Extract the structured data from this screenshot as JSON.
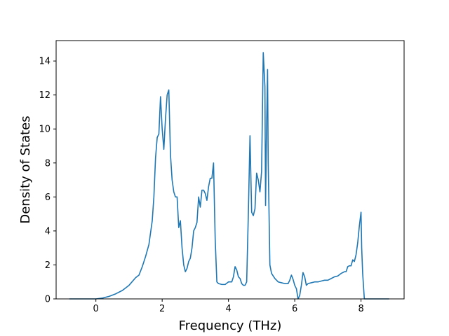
{
  "chart_data": {
    "type": "line",
    "title": "",
    "xlabel": "Frequency (THz)",
    "ylabel": "Density of States",
    "xlim": [
      -1.2,
      9.3
    ],
    "ylim": [
      0,
      15.2
    ],
    "xticks": [
      0,
      2,
      4,
      6,
      8
    ],
    "yticks": [
      0,
      2,
      4,
      6,
      8,
      10,
      12,
      14
    ],
    "grid": false,
    "legend": "none",
    "colors": {
      "line": "#1f77b4",
      "axes": "#000000",
      "background": "#ffffff"
    },
    "series": [
      {
        "x": [
          -0.8,
          -0.4,
          0.0,
          0.2,
          0.4,
          0.6,
          0.8,
          1.0,
          1.2,
          1.3,
          1.4,
          1.5,
          1.6,
          1.7,
          1.75,
          1.8,
          1.85,
          1.9,
          1.95,
          2.0,
          2.05,
          2.1,
          2.15,
          2.2,
          2.25,
          2.3,
          2.35,
          2.4,
          2.45,
          2.5,
          2.55,
          2.6,
          2.65,
          2.7,
          2.75,
          2.8,
          2.85,
          2.9,
          2.95,
          3.0,
          3.05,
          3.1,
          3.15,
          3.2,
          3.25,
          3.3,
          3.35,
          3.4,
          3.45,
          3.5,
          3.55,
          3.6,
          3.65,
          3.7,
          3.8,
          3.9,
          4.0,
          4.1,
          4.15,
          4.2,
          4.25,
          4.3,
          4.35,
          4.4,
          4.45,
          4.5,
          4.55,
          4.6,
          4.65,
          4.7,
          4.75,
          4.8,
          4.85,
          4.9,
          4.95,
          5.0,
          5.05,
          5.1,
          5.12,
          5.15,
          5.18,
          5.2,
          5.25,
          5.3,
          5.4,
          5.5,
          5.6,
          5.7,
          5.8,
          5.85,
          5.9,
          5.95,
          6.0,
          6.05,
          6.1,
          6.15,
          6.2,
          6.25,
          6.3,
          6.35,
          6.4,
          6.5,
          6.6,
          6.7,
          6.8,
          6.9,
          7.0,
          7.1,
          7.2,
          7.3,
          7.4,
          7.5,
          7.55,
          7.6,
          7.65,
          7.7,
          7.75,
          7.8,
          7.85,
          7.9,
          7.95,
          8.0,
          8.02,
          8.05,
          8.1,
          8.3,
          8.6,
          8.85
        ],
        "y": [
          0.0,
          0.0,
          0.0,
          0.05,
          0.15,
          0.3,
          0.5,
          0.8,
          1.25,
          1.4,
          1.9,
          2.5,
          3.2,
          4.6,
          6.0,
          8.3,
          9.5,
          9.7,
          11.9,
          10.0,
          8.8,
          10.6,
          12.0,
          12.3,
          8.5,
          7.0,
          6.3,
          6.0,
          6.0,
          4.2,
          4.6,
          3.0,
          2.0,
          1.6,
          1.8,
          2.2,
          2.4,
          3.0,
          4.0,
          4.2,
          4.5,
          6.0,
          5.4,
          6.4,
          6.4,
          6.2,
          5.8,
          6.6,
          7.1,
          7.1,
          8.0,
          3.5,
          1.0,
          0.9,
          0.85,
          0.85,
          1.0,
          1.0,
          1.3,
          1.9,
          1.7,
          1.3,
          1.2,
          0.9,
          0.8,
          0.8,
          1.0,
          5.0,
          9.6,
          5.1,
          4.9,
          5.3,
          7.4,
          7.0,
          6.3,
          7.5,
          14.5,
          12.5,
          5.5,
          10.0,
          13.5,
          8.0,
          2.0,
          1.5,
          1.2,
          1.0,
          0.95,
          0.9,
          0.9,
          1.1,
          1.4,
          1.15,
          0.8,
          0.6,
          0.0,
          0.2,
          0.8,
          1.55,
          1.3,
          0.8,
          0.9,
          0.95,
          1.0,
          1.0,
          1.05,
          1.1,
          1.1,
          1.2,
          1.3,
          1.35,
          1.5,
          1.6,
          1.6,
          1.9,
          1.95,
          1.95,
          2.3,
          2.2,
          2.6,
          3.3,
          4.3,
          5.1,
          3.0,
          1.5,
          0.0,
          0.0,
          0.0,
          0.0
        ]
      }
    ]
  }
}
